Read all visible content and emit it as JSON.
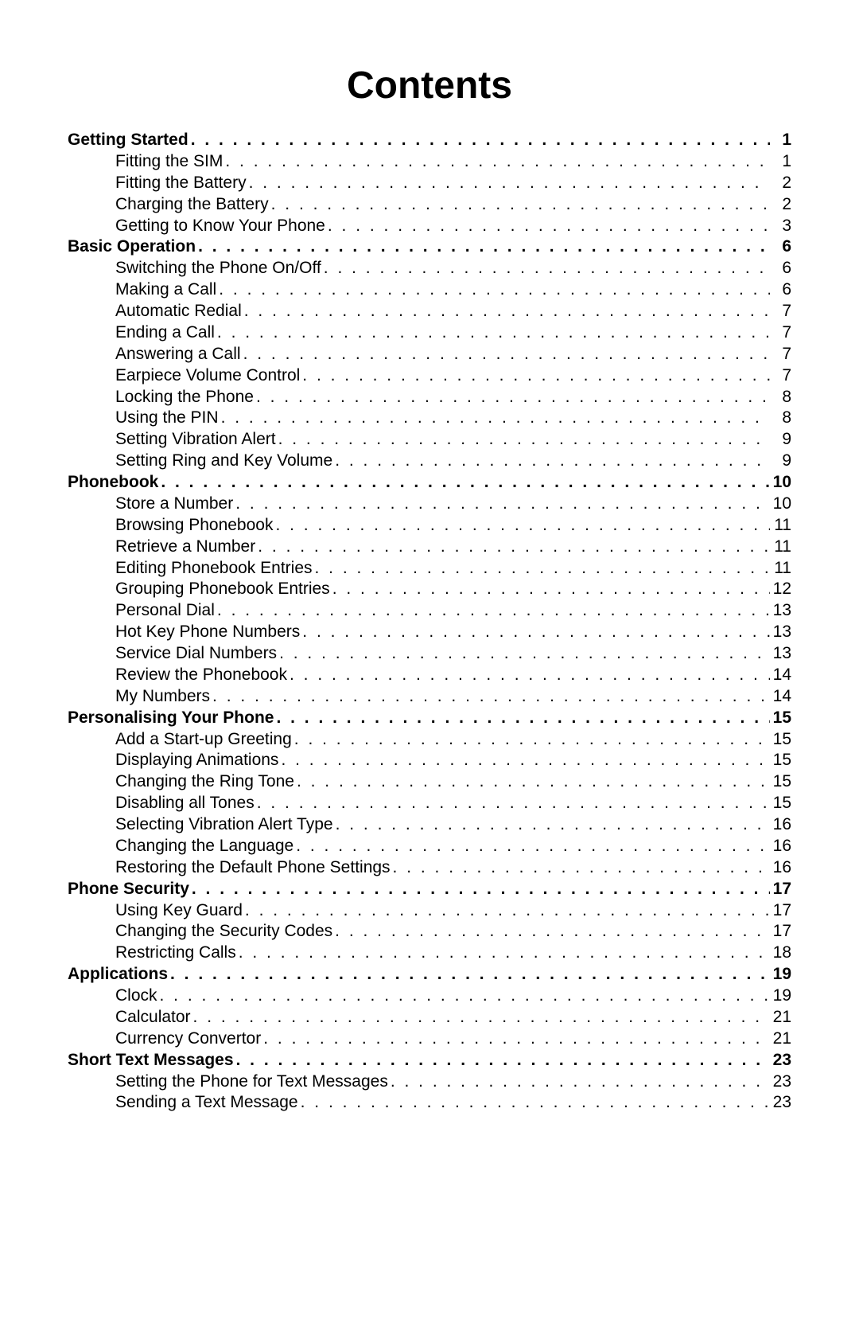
{
  "title": "Contents",
  "sections": [
    {
      "label": "Getting Started",
      "page": "1",
      "items": [
        {
          "label": "Fitting the SIM",
          "page": "1"
        },
        {
          "label": "Fitting the Battery",
          "page": "2"
        },
        {
          "label": "Charging the Battery",
          "page": "2"
        },
        {
          "label": "Getting to Know Your Phone",
          "page": "3"
        }
      ]
    },
    {
      "label": "Basic Operation",
      "page": "6",
      "items": [
        {
          "label": "Switching the Phone On/Off",
          "page": "6"
        },
        {
          "label": "Making a Call",
          "page": "6"
        },
        {
          "label": "Automatic Redial",
          "page": "7"
        },
        {
          "label": "Ending a Call",
          "page": "7"
        },
        {
          "label": "Answering a Call",
          "page": "7"
        },
        {
          "label": "Earpiece Volume Control",
          "page": "7"
        },
        {
          "label": "Locking the Phone",
          "page": "8"
        },
        {
          "label": "Using the PIN",
          "page": "8"
        },
        {
          "label": "Setting Vibration Alert",
          "page": "9"
        },
        {
          "label": "Setting Ring and Key Volume",
          "page": "9"
        }
      ]
    },
    {
      "label": "Phonebook",
      "page": "10",
      "items": [
        {
          "label": "Store a Number",
          "page": "10"
        },
        {
          "label": "Browsing Phonebook",
          "page": "11"
        },
        {
          "label": "Retrieve a Number",
          "page": "11"
        },
        {
          "label": "Editing Phonebook Entries",
          "page": "11"
        },
        {
          "label": "Grouping Phonebook Entries",
          "page": "12"
        },
        {
          "label": "Personal Dial",
          "page": "13"
        },
        {
          "label": "Hot Key Phone Numbers",
          "page": "13"
        },
        {
          "label": "Service Dial Numbers",
          "page": "13"
        },
        {
          "label": "Review the Phonebook",
          "page": "14"
        },
        {
          "label": "My Numbers",
          "page": "14"
        }
      ]
    },
    {
      "label": "Personalising Your Phone",
      "page": "15",
      "items": [
        {
          "label": "Add a Start-up Greeting",
          "page": "15"
        },
        {
          "label": "Displaying Animations",
          "page": "15"
        },
        {
          "label": "Changing the Ring Tone",
          "page": "15"
        },
        {
          "label": "Disabling all Tones",
          "page": "15"
        },
        {
          "label": "Selecting Vibration Alert Type",
          "page": "16"
        },
        {
          "label": "Changing the Language",
          "page": "16"
        },
        {
          "label": "Restoring the Default Phone Settings",
          "page": "16"
        }
      ]
    },
    {
      "label": "Phone Security",
      "page": "17",
      "items": [
        {
          "label": "Using Key Guard",
          "page": "17"
        },
        {
          "label": "Changing the Security Codes",
          "page": "17"
        },
        {
          "label": "Restricting Calls",
          "page": "18"
        }
      ]
    },
    {
      "label": "Applications",
      "page": "19",
      "items": [
        {
          "label": "Clock",
          "page": "19"
        },
        {
          "label": "Calculator",
          "page": "21"
        },
        {
          "label": "Currency Convertor",
          "page": "21"
        }
      ]
    },
    {
      "label": "Short Text Messages",
      "page": "23",
      "items": [
        {
          "label": "Setting the Phone for Text Messages",
          "page": "23"
        },
        {
          "label": "Sending a Text Message",
          "page": "23"
        }
      ]
    }
  ]
}
